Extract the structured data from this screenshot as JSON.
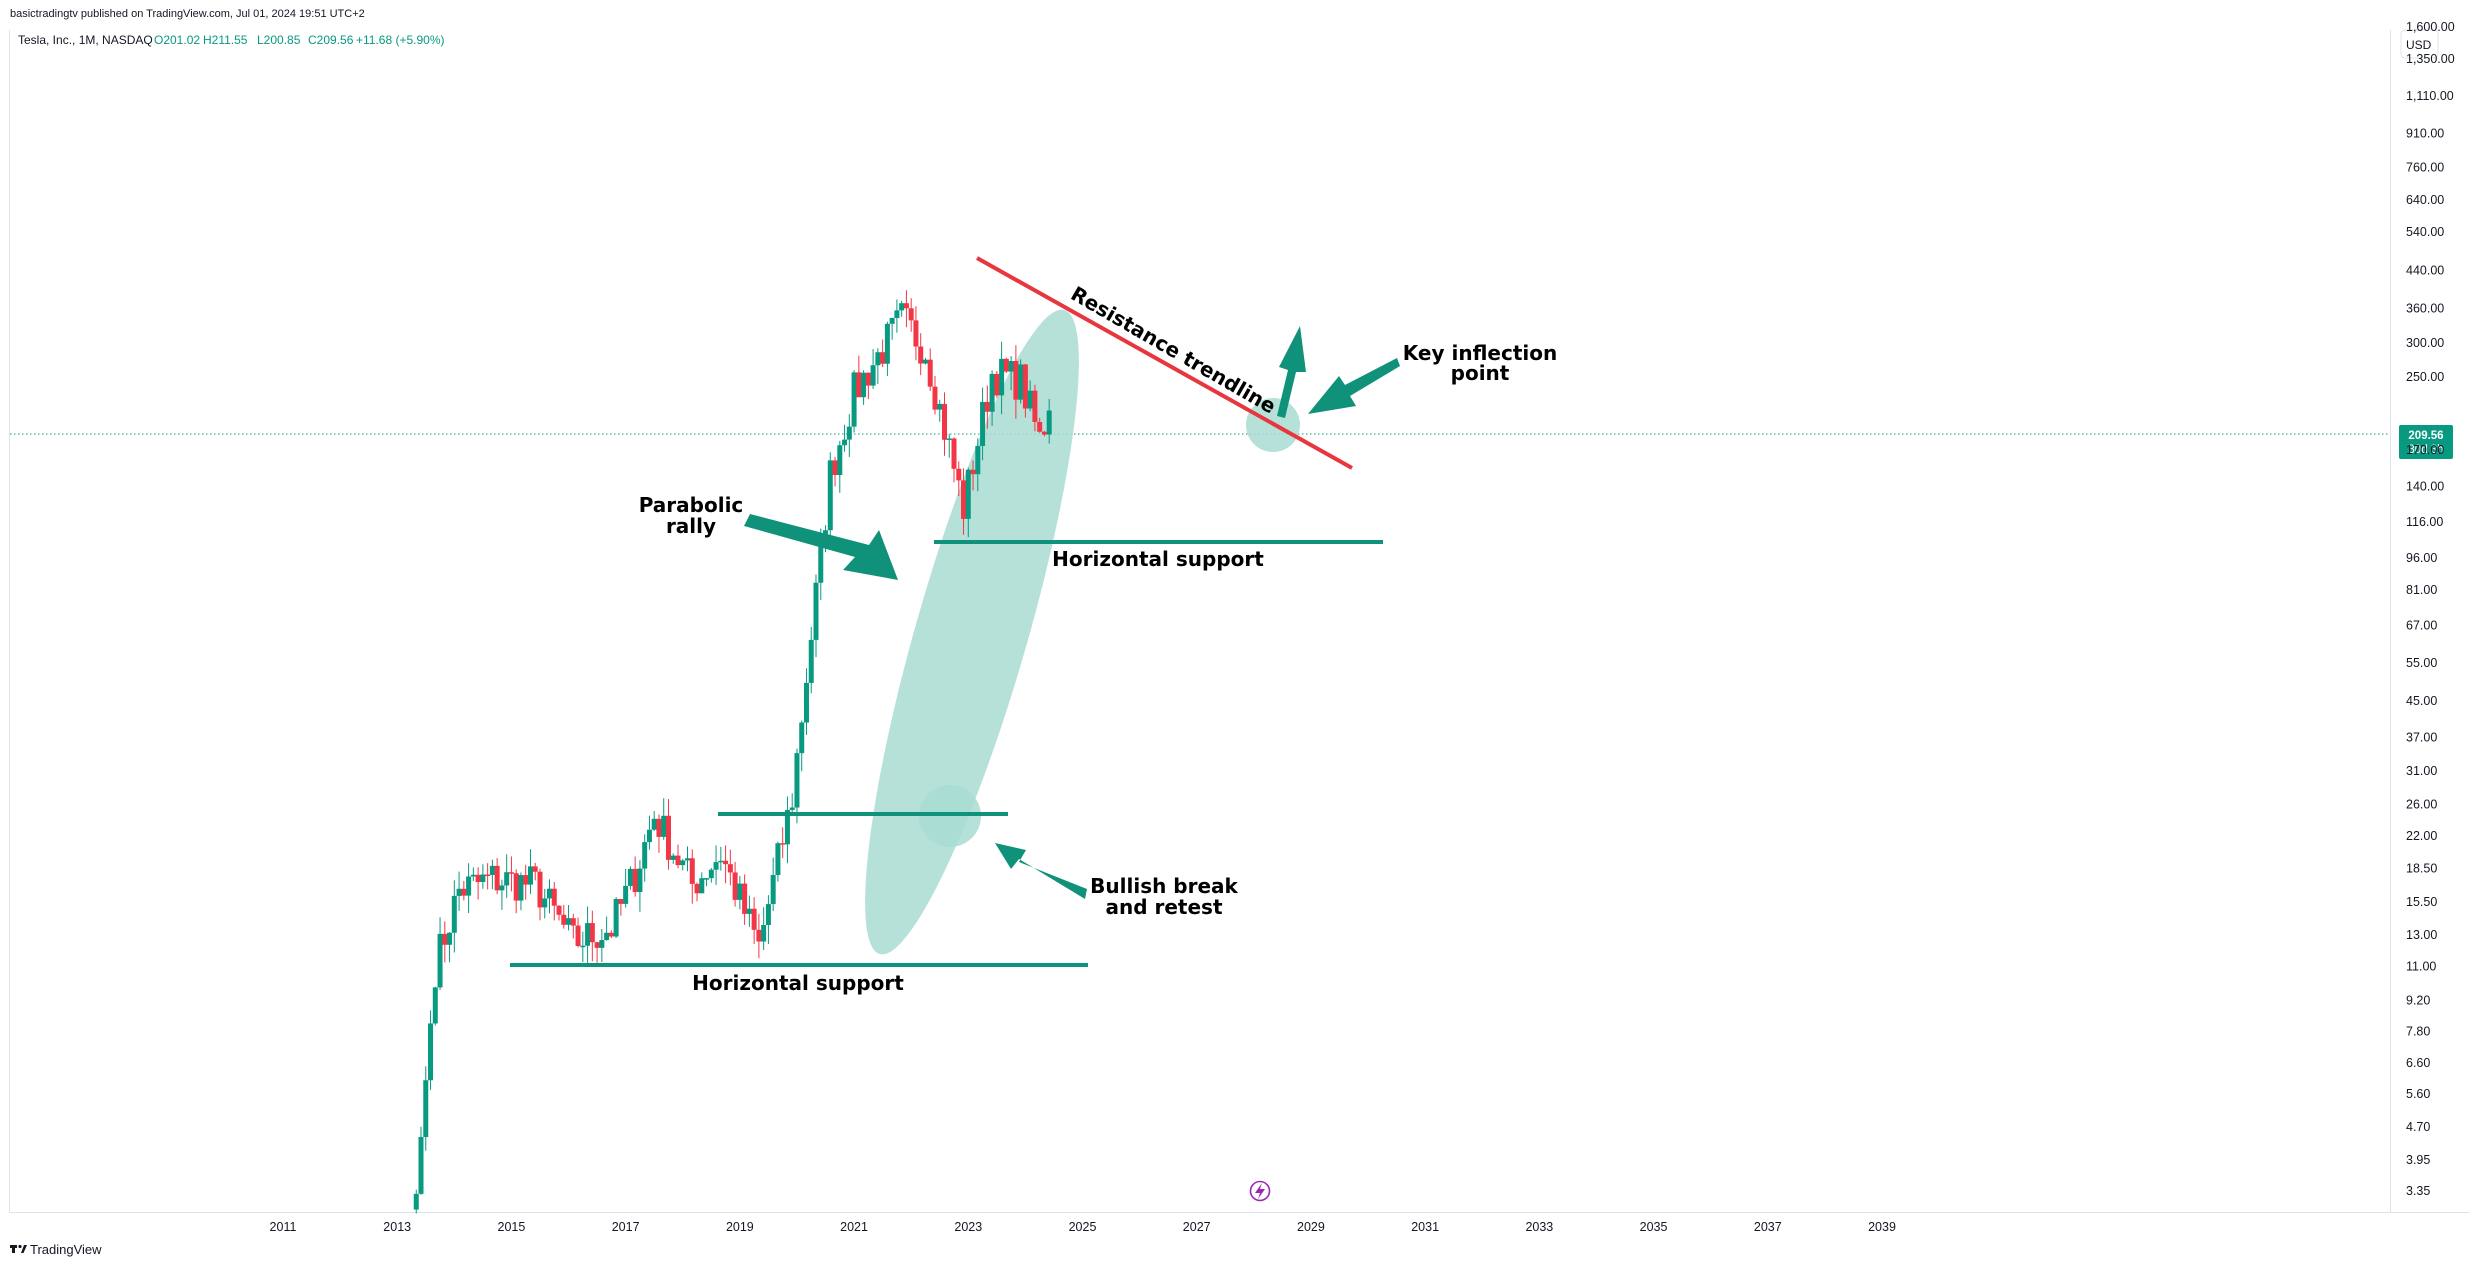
{
  "header": {
    "published_by": "basictradingtv published on TradingView.com, Jul 01, 2024 19:51 UTC+2",
    "symbol": "Tesla, Inc., 1M, NASDAQ",
    "open": "O201.02",
    "high": "H211.55",
    "low": "L200.85",
    "close": "C209.56",
    "change": "+11.68 (+5.90%)"
  },
  "currency": "USD",
  "price_badge": {
    "price": "209.56",
    "countdown": "30d 3h"
  },
  "footer": {
    "brand": "TradingView"
  },
  "colors": {
    "up": "#089981",
    "down": "#f23645",
    "annotation": "#10917a",
    "resistance": "#e8363f",
    "highlight": "#a8dcd2"
  },
  "icons": [
    "lightning-icon",
    "tradingview-logo-icon"
  ],
  "annotations": {
    "parabolic": [
      "Parabolic",
      "rally"
    ],
    "support_upper": "Horizontal support",
    "support_lower": "Horizontal support",
    "bullish": [
      "Bullish break",
      "and retest"
    ],
    "key": [
      "Key inflection",
      "point"
    ],
    "resistance": "Resistance trendline"
  },
  "chart_data": {
    "type": "candlestick",
    "y_scale": "log",
    "x_ticks": [
      "2011",
      "2013",
      "2015",
      "2017",
      "2019",
      "2021",
      "2023",
      "2025",
      "2027",
      "2029",
      "2031",
      "2033",
      "2035",
      "2037",
      "2039"
    ],
    "y_ticks": [
      "3.35",
      "3.95",
      "4.70",
      "5.60",
      "6.60",
      "7.80",
      "9.20",
      "11.00",
      "13.00",
      "15.50",
      "18.50",
      "22.00",
      "26.00",
      "31.00",
      "37.00",
      "45.00",
      "55.00",
      "67.00",
      "81.00",
      "96.00",
      "116.00",
      "140.00",
      "170.00",
      "209.56",
      "250.00",
      "300.00",
      "360.00",
      "440.00",
      "540.00",
      "640.00",
      "760.00",
      "910.00",
      "1,110.00",
      "1,350.00",
      "1,600.00"
    ],
    "last_price": 209.56,
    "series_name": "Tesla, Inc., 1M, NASDAQ",
    "waypoints": [
      {
        "date": "2013-05",
        "close": 3.3
      },
      {
        "date": "2013-09",
        "close": 11.0
      },
      {
        "date": "2014-02",
        "close": 16.5
      },
      {
        "date": "2014-09",
        "close": 17.5
      },
      {
        "date": "2015-06",
        "close": 17.0
      },
      {
        "date": "2016-02",
        "close": 12.5
      },
      {
        "date": "2016-10",
        "close": 13.5
      },
      {
        "date": "2017-03",
        "close": 18.0
      },
      {
        "date": "2017-07",
        "close": 24.5
      },
      {
        "date": "2018-03",
        "close": 17.0
      },
      {
        "date": "2018-09",
        "close": 20.0
      },
      {
        "date": "2019-05",
        "close": 12.2
      },
      {
        "date": "2019-12",
        "close": 27.0
      },
      {
        "date": "2020-08",
        "close": 150.0
      },
      {
        "date": "2021-01",
        "close": 230.0
      },
      {
        "date": "2021-11",
        "close": 340.0
      },
      {
        "date": "2022-04",
        "close": 290.0
      },
      {
        "date": "2022-12",
        "close": 125.0
      },
      {
        "date": "2023-06",
        "close": 255.0
      },
      {
        "date": "2023-12",
        "close": 245.0
      },
      {
        "date": "2024-04",
        "close": 180.0
      },
      {
        "date": "2024-06",
        "close": 209.56
      }
    ]
  }
}
